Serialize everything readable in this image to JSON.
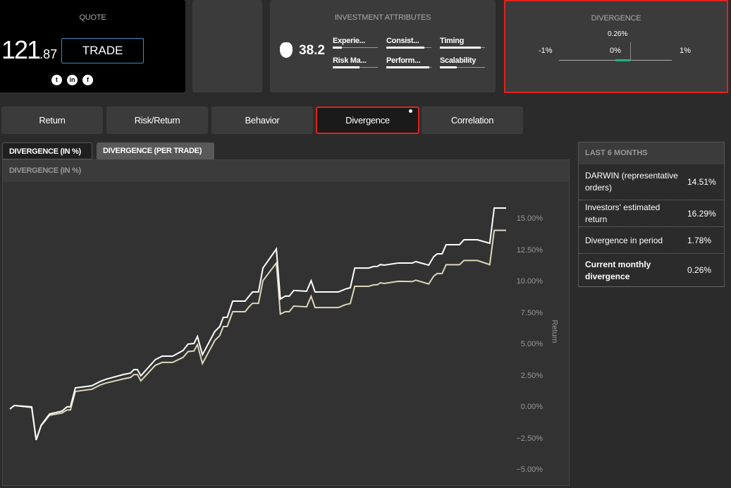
{
  "quote": {
    "title": "QUOTE",
    "price_int": "121",
    "price_dec": ".87",
    "trade_label": "TRADE",
    "social": [
      "twitter-icon",
      "linkedin-icon",
      "facebook-icon"
    ]
  },
  "attributes": {
    "title": "INVESTMENT ATTRIBUTES",
    "score": "38.2",
    "items": [
      {
        "label": "Experie...",
        "level": 0.2
      },
      {
        "label": "Consist...",
        "level": 0.85
      },
      {
        "label": "Timing",
        "level": 0.9
      },
      {
        "label": "Risk Ma...",
        "level": 0.6
      },
      {
        "label": "Perform...",
        "level": 0.95
      },
      {
        "label": "Scalability",
        "level": 0.37
      }
    ]
  },
  "divergence_box": {
    "title": "DIVERGENCE",
    "value_label": "0.26%",
    "value": 0.26,
    "min_label": "-1%",
    "mid_label": "0%",
    "max_label": "1%",
    "accent": "#1db87a",
    "border": "#e0231c"
  },
  "tabs": [
    {
      "label": "Return"
    },
    {
      "label": "Risk/Return"
    },
    {
      "label": "Behavior"
    },
    {
      "label": "Divergence",
      "active": true
    },
    {
      "label": "Correlation"
    }
  ],
  "subtabs": [
    {
      "label": "DIVERGENCE (IN %)",
      "active": true
    },
    {
      "label": "DIVERGENCE (PER TRADE)"
    }
  ],
  "chart_panel_title": "DIVERGENCE (IN %)",
  "chart_data": {
    "type": "line",
    "ylabel": "Return",
    "ylim": [
      -5,
      16.5
    ],
    "yticks": [
      "15.00%",
      "12.50%",
      "10.00%",
      "7.50%",
      "5.00%",
      "2.50%",
      "0.00%",
      "−2.50%",
      "−5.00%"
    ],
    "ytick_values": [
      15,
      12.5,
      10,
      7.5,
      5,
      2.5,
      0,
      -2.5,
      -5
    ],
    "grid": false,
    "x": [
      0,
      0.9,
      4.4,
      5.3,
      6.3,
      8.0,
      10.5,
      11.5,
      12.2,
      13.2,
      16.5,
      18.2,
      19.3,
      22.9,
      24.3,
      25.0,
      25.7,
      26.4,
      29.3,
      30.7,
      32.8,
      34.9,
      35.9,
      37.1,
      37.8,
      38.8,
      41.3,
      42.3,
      43.0,
      43.8,
      44.9,
      47.4,
      48.2,
      48.9,
      50.1,
      51.0,
      53.7,
      54.5,
      55.5,
      56.3,
      57.2,
      59.8,
      60.7,
      61.5,
      66.2,
      67.6,
      68.6,
      69.5,
      72.3,
      73.3,
      74.0,
      74.7,
      75.4,
      78.3,
      81.1,
      81.8,
      84.4,
      85.4,
      86.1,
      87.1,
      87.9,
      90.6,
      91.5,
      94.2,
      96.7,
      97.6,
      100
    ],
    "series": [
      {
        "color": "#ffffff",
        "values": [
          -0.11,
          0.17,
          0.06,
          -2.58,
          -1.4,
          -0.51,
          -0.28,
          0.06,
          0.06,
          1.57,
          1.74,
          2.08,
          2.25,
          2.64,
          2.75,
          3.03,
          3.03,
          2.53,
          3.82,
          4.1,
          4.1,
          4.55,
          5.06,
          5.11,
          5.67,
          4.21,
          6.07,
          6.46,
          7.19,
          7.19,
          8.48,
          8.48,
          8.88,
          9.21,
          9.21,
          11.12,
          12.64,
          8.65,
          8.88,
          8.88,
          9.33,
          9.27,
          10.11,
          9.21,
          9.21,
          9.44,
          9.55,
          11.12,
          11.12,
          11.24,
          11.24,
          11.4,
          11.35,
          11.52,
          11.52,
          11.63,
          11.35,
          12.02,
          12.25,
          12.25,
          12.98,
          12.98,
          13.37,
          13.37,
          13.09,
          15.9,
          15.9
        ]
      },
      {
        "color": "#ddd6b8",
        "values": [
          -0.11,
          0.17,
          0.01,
          -2.58,
          -1.45,
          -0.61,
          -0.43,
          -0.19,
          -0.19,
          1.29,
          1.46,
          1.8,
          1.95,
          2.29,
          2.4,
          2.63,
          2.63,
          2.13,
          3.37,
          3.6,
          3.6,
          4.0,
          4.46,
          4.51,
          5.02,
          3.51,
          5.35,
          5.74,
          6.46,
          6.46,
          7.64,
          7.64,
          8.04,
          8.31,
          8.31,
          10.12,
          11.52,
          7.45,
          7.64,
          7.64,
          8.09,
          8.03,
          8.87,
          7.97,
          7.97,
          8.2,
          8.29,
          9.66,
          9.66,
          9.78,
          9.78,
          9.94,
          9.89,
          10.06,
          10.04,
          10.15,
          9.85,
          10.47,
          10.68,
          10.68,
          11.38,
          11.38,
          11.72,
          11.72,
          11.39,
          14.12,
          14.12
        ]
      }
    ]
  },
  "summary": {
    "title": "LAST 6 MONTHS",
    "rows": [
      {
        "label": "DARWIN (representative orders)",
        "value": "14.51%"
      },
      {
        "label": "Investors' estimated return",
        "value": "16.29%"
      },
      {
        "label": "Divergence in period",
        "value": "1.78%"
      },
      {
        "label": "Current monthly divergence",
        "value": "0.26%",
        "bold": true
      }
    ]
  }
}
